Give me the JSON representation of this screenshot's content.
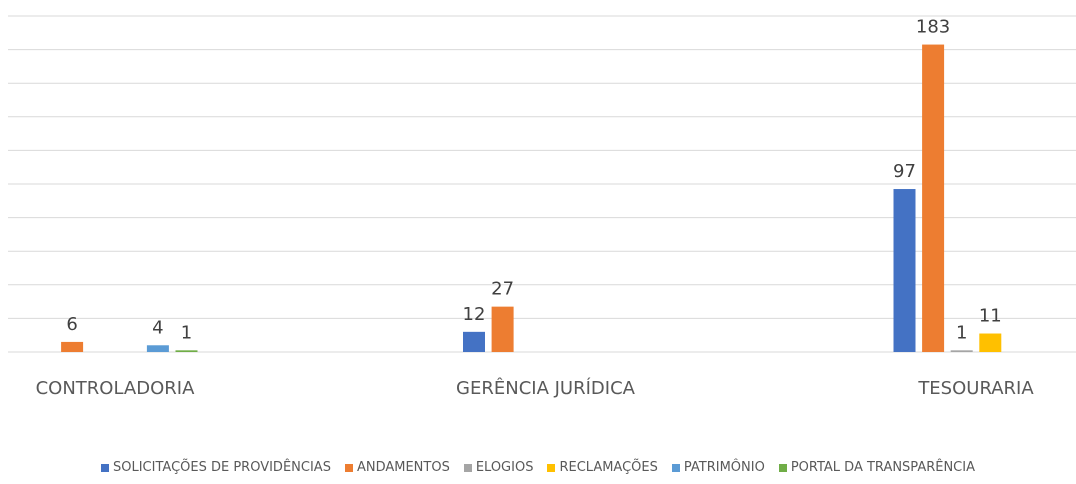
{
  "chart_data": {
    "type": "bar",
    "categories": [
      "CONTROLADORIA",
      "GERÊNCIA JURÍDICA",
      "TESOURARIA"
    ],
    "series": [
      {
        "name": "SOLICITAÇÕES DE PROVIDÊNCIAS",
        "color": "#4472c4",
        "values": [
          null,
          12,
          97
        ]
      },
      {
        "name": "ANDAMENTOS",
        "color": "#ed7d31",
        "values": [
          6,
          27,
          183
        ]
      },
      {
        "name": "ELOGIOS",
        "color": "#a5a5a5",
        "values": [
          null,
          null,
          1
        ]
      },
      {
        "name": "RECLAMAÇÕES",
        "color": "#ffc000",
        "values": [
          null,
          null,
          11
        ]
      },
      {
        "name": "PATRIMÔNIO",
        "color": "#5b9bd5",
        "values": [
          4,
          null,
          null
        ]
      },
      {
        "name": "PORTAL DA TRANSPARÊNCIA",
        "color": "#70ad47",
        "values": [
          1,
          null,
          null
        ]
      }
    ],
    "ylim": [
      0,
      200
    ],
    "yticks": [
      0,
      20,
      40,
      60,
      80,
      100,
      120,
      140,
      160,
      180,
      200
    ],
    "grid": true
  }
}
